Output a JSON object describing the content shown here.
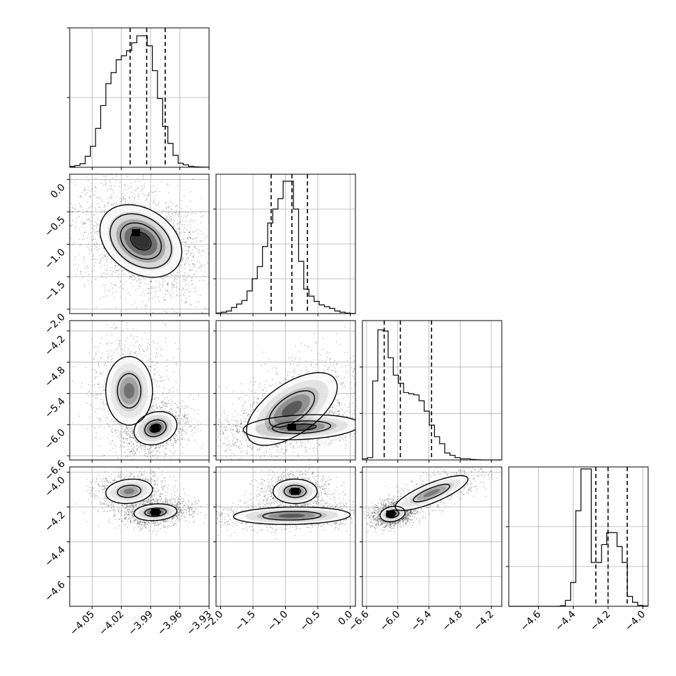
{
  "chart_data": {
    "type": "corner",
    "description_note": "",
    "parameters": [
      {
        "index": 0,
        "range": [
          -4.073,
          -3.93
        ],
        "ticks": [
          -4.05,
          -4.02,
          -3.99,
          -3.96,
          -3.93
        ],
        "tick_labels": [
          "−4.05",
          "−4.02",
          "−3.99",
          "−3.96",
          "−3.93"
        ],
        "quantiles": [
          -4.011,
          -3.994,
          -3.975
        ],
        "hist_bin_edges_start": -4.073,
        "hist_bin_width": 0.0053,
        "hist_counts": [
          0.4,
          0.9,
          1.8,
          5.5,
          10.5,
          19.5,
          31.0,
          42.0,
          47.5,
          54.0,
          56.0,
          58.5,
          62.5,
          66.0,
          66.0,
          61.0,
          48.5,
          34.5,
          20.5,
          12.0,
          6.0,
          2.0,
          1.2,
          0.5,
          0.2,
          0.1,
          0.05
        ],
        "hist_ymax": 70
      },
      {
        "index": 1,
        "range": [
          -2.07,
          0.08
        ],
        "ticks": [
          -2.0,
          -1.5,
          -1.0,
          -0.5,
          0.0
        ],
        "tick_labels": [
          "−2.0",
          "−1.5",
          "−1.0",
          "−0.5",
          "0.0"
        ],
        "quantiles": [
          -1.22,
          -0.9,
          -0.66
        ],
        "hist_bin_edges_start": -2.07,
        "hist_bin_width": 0.0796,
        "hist_counts": [
          0.3,
          0.8,
          1.5,
          3.5,
          5.5,
          7.5,
          13.0,
          20.0,
          27.0,
          38.5,
          52.0,
          60.0,
          66.0,
          76.0,
          76.0,
          60.0,
          30.0,
          14.0,
          10.0,
          7.0,
          5.0,
          4.0,
          3.0,
          1.5,
          0.8,
          0.3,
          0.1
        ],
        "hist_ymax": 80
      },
      {
        "index": 2,
        "range": [
          -6.68,
          -4.0
        ],
        "ticks": [
          -6.6,
          -6.0,
          -5.4,
          -4.8,
          -4.2
        ],
        "tick_labels": [
          "−6.6",
          "−6.0",
          "−5.4",
          "−4.8",
          "−4.2"
        ],
        "quantiles": [
          -6.26,
          -5.95,
          -5.35
        ],
        "hist_bin_edges_start": -6.68,
        "hist_bin_width": 0.099,
        "hist_counts": [
          0.5,
          1.0,
          34.0,
          56.0,
          55.5,
          44.0,
          36.5,
          33.0,
          29.0,
          28.5,
          28.0,
          25.5,
          21.0,
          15.0,
          10.0,
          7.0,
          3.0,
          2.0,
          1.0,
          0.5,
          0.5,
          0.2,
          0.1,
          0.0,
          0.0,
          0.0,
          0.0
        ],
        "hist_ymax": 60
      },
      {
        "index": 3,
        "range": [
          -4.77,
          -3.97
        ],
        "ticks": [
          -4.6,
          -4.4,
          -4.2,
          -4.0
        ],
        "tick_labels": [
          "−4.6",
          "−4.4",
          "−4.2",
          "−4.0"
        ],
        "quantiles": [
          -4.27,
          -4.2,
          -4.09
        ],
        "hist_bin_edges_start": -4.77,
        "hist_bin_width": 0.0296,
        "hist_counts": [
          0,
          0,
          0,
          0,
          0,
          0,
          0,
          0,
          0,
          0,
          0.3,
          3.0,
          12.0,
          48.0,
          69.0,
          69.0,
          22.0,
          22.0,
          31.0,
          37.0,
          37.0,
          30.0,
          22.0,
          5.0,
          2.0,
          0.5,
          0.2
        ],
        "hist_ymax": 70
      }
    ],
    "hist_yticks_per_panel": [
      [
        35,
        70
      ],
      [
        20,
        40,
        60
      ],
      [
        20,
        40
      ],
      [
        20,
        40
      ]
    ],
    "pairs": [
      {
        "x": 0,
        "y": 1,
        "blobs": [
          {
            "cx": -4.0,
            "cy": -0.95,
            "sx": 0.021,
            "sy": 0.28,
            "rho": -0.3,
            "w": 1.0
          }
        ],
        "contour_centers": [
          [
            -4.0,
            -0.95
          ]
        ],
        "contour_levels": [
          [
            0.021,
            0.28,
            -0.3,
            0.5
          ],
          [
            0.021,
            0.28,
            -0.3,
            1.0
          ],
          [
            0.021,
            0.28,
            -0.3,
            1.5
          ],
          [
            0.021,
            0.28,
            -0.3,
            2.0
          ]
        ],
        "peak": [
          -4.005,
          -0.82
        ]
      },
      {
        "x": 0,
        "y": 2,
        "blobs": [
          {
            "cx": -4.012,
            "cy": -5.35,
            "sx": 0.012,
            "sy": 0.33,
            "rho": 0.0,
            "w": 0.55
          },
          {
            "cx": -3.985,
            "cy": -6.07,
            "sx": 0.011,
            "sy": 0.16,
            "rho": 0.2,
            "w": 0.75
          }
        ],
        "contour_centers": [
          [
            -4.012,
            -5.35
          ],
          [
            -3.985,
            -6.07
          ]
        ],
        "contour_levels": [
          [
            0.012,
            0.33,
            0.0,
            1.0
          ],
          [
            0.012,
            0.33,
            0.0,
            2.0
          ],
          [
            0.011,
            0.16,
            0.2,
            0.5
          ],
          [
            0.011,
            0.16,
            0.2,
            1.0
          ],
          [
            0.011,
            0.16,
            0.2,
            2.0
          ]
        ],
        "peak": [
          -3.985,
          -6.07
        ]
      },
      {
        "x": 0,
        "y": 3,
        "blobs": [
          {
            "cx": -4.012,
            "cy": -4.11,
            "sx": 0.012,
            "sy": 0.035,
            "rho": 0.15,
            "w": 0.5
          },
          {
            "cx": -3.985,
            "cy": -4.23,
            "sx": 0.011,
            "sy": 0.024,
            "rho": 0.15,
            "w": 0.8
          }
        ],
        "contour_centers": [
          [
            -4.012,
            -4.11
          ],
          [
            -3.985,
            -4.23
          ]
        ],
        "contour_levels": [
          [
            0.012,
            0.035,
            0.15,
            1.0
          ],
          [
            0.012,
            0.035,
            0.15,
            2.0
          ],
          [
            0.011,
            0.024,
            0.15,
            0.5
          ],
          [
            0.011,
            0.024,
            0.15,
            1.0
          ],
          [
            0.011,
            0.024,
            0.15,
            2.0
          ]
        ],
        "peak": [
          -3.985,
          -4.23
        ]
      },
      {
        "x": 1,
        "y": 2,
        "blobs": [
          {
            "cx": -0.9,
            "cy": -5.7,
            "sx": 0.35,
            "sy": 0.35,
            "rho": 0.6,
            "w": 0.7
          },
          {
            "cx": -0.75,
            "cy": -6.05,
            "sx": 0.45,
            "sy": 0.12,
            "rho": 0.2,
            "w": 0.7
          }
        ],
        "contour_centers": [
          [
            -0.9,
            -5.7
          ],
          [
            -0.75,
            -6.05
          ]
        ],
        "contour_levels": [
          [
            0.35,
            0.35,
            0.6,
            1.0
          ],
          [
            0.35,
            0.35,
            0.6,
            2.0
          ],
          [
            0.45,
            0.12,
            0.2,
            0.5
          ],
          [
            0.45,
            0.12,
            0.2,
            1.0
          ],
          [
            0.45,
            0.12,
            0.2,
            2.0
          ]
        ],
        "peak": [
          -0.9,
          -6.05
        ]
      },
      {
        "x": 1,
        "y": 3,
        "blobs": [
          {
            "cx": -0.85,
            "cy": -4.11,
            "sx": 0.17,
            "sy": 0.035,
            "rho": 0.0,
            "w": 0.6
          },
          {
            "cx": -0.9,
            "cy": -4.25,
            "sx": 0.45,
            "sy": 0.025,
            "rho": 0.1,
            "w": 0.7
          }
        ],
        "contour_centers": [
          [
            -0.85,
            -4.11
          ],
          [
            -0.9,
            -4.25
          ]
        ],
        "contour_levels": [
          [
            0.17,
            0.035,
            0.0,
            0.5
          ],
          [
            0.17,
            0.035,
            0.0,
            1.0
          ],
          [
            0.17,
            0.035,
            0.0,
            2.0
          ],
          [
            0.45,
            0.025,
            0.1,
            1.0
          ],
          [
            0.45,
            0.025,
            0.1,
            2.0
          ]
        ],
        "peak": [
          -0.85,
          -4.11
        ]
      },
      {
        "x": 2,
        "y": 3,
        "blobs": [
          {
            "cx": -5.35,
            "cy": -4.12,
            "sx": 0.35,
            "sy": 0.05,
            "rho": 0.8,
            "w": 0.5
          },
          {
            "cx": -6.1,
            "cy": -4.24,
            "sx": 0.12,
            "sy": 0.022,
            "rho": 0.2,
            "w": 0.8
          }
        ],
        "contour_centers": [
          [
            -5.35,
            -4.12
          ],
          [
            -6.1,
            -4.24
          ]
        ],
        "contour_levels": [
          [
            0.35,
            0.05,
            0.8,
            1.0
          ],
          [
            0.35,
            0.05,
            0.8,
            2.0
          ],
          [
            0.12,
            0.022,
            0.2,
            0.5
          ],
          [
            0.12,
            0.022,
            0.2,
            1.0
          ],
          [
            0.12,
            0.022,
            0.2,
            2.0
          ]
        ],
        "peak": [
          -6.14,
          -4.24
        ]
      }
    ],
    "grid": true,
    "colors": {
      "points": "#000000",
      "density_dark": "#000000",
      "density_light": "#ffffff",
      "lines": "#000000"
    }
  }
}
